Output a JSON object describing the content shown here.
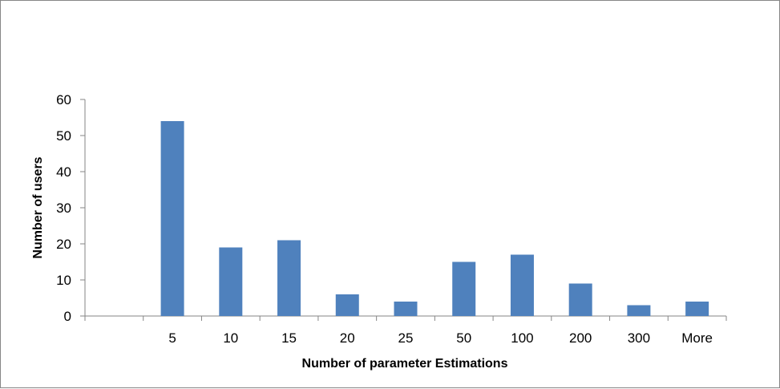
{
  "chart_data": {
    "type": "bar",
    "title": "",
    "xlabel": "Number of parameter Estimations",
    "ylabel": "Number of users",
    "categories": [
      "",
      "5",
      "10",
      "15",
      "20",
      "25",
      "50",
      "100",
      "200",
      "300",
      "More"
    ],
    "values": [
      0,
      54,
      19,
      21,
      6,
      4,
      15,
      17,
      9,
      3,
      4
    ],
    "ylim": [
      0,
      60
    ],
    "yticks": [
      "0",
      "10",
      "20",
      "30",
      "40",
      "50",
      "60"
    ],
    "grid": false,
    "legend": "none",
    "bar_color": "#4F81BD"
  }
}
